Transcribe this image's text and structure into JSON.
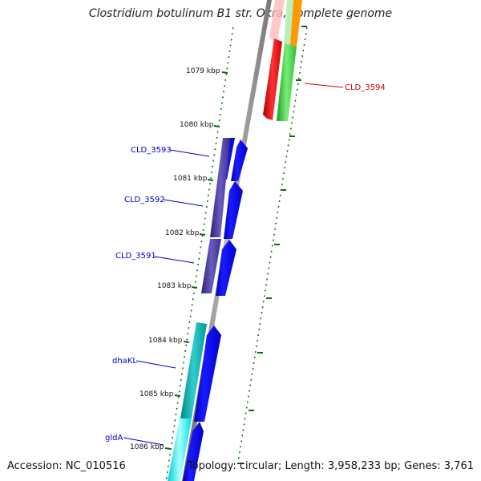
{
  "title": "Clostridium botulinum B1 str. Okra, complete genome",
  "footer": {
    "accession": "Accession: NC_010516",
    "summary": "Topology: circular; Length: 3,958,233 bp; Genes: 3,761"
  },
  "kbp_ticks": [
    "1079 kbp",
    "1080 kbp",
    "1081 kbp",
    "1082 kbp",
    "1083 kbp",
    "1084 kbp",
    "1085 kbp",
    "1086 kbp"
  ],
  "genes": {
    "cld3594": "CLD_3594",
    "cld3593": "CLD_3593",
    "cld3592": "CLD_3592",
    "cld3591": "CLD_3591",
    "dhaKL": "dhaKL",
    "gldA": "gldA"
  },
  "colors": {
    "backbone": "#888888",
    "tick": "#116611",
    "cds": "#0000ee",
    "red_gene": "#ee0000",
    "green_gene": "#33cc33",
    "orange_gene": "#ff9900",
    "purple_gene": "#443399",
    "teal_gene": "#00aaaa",
    "cyan_gene": "#00eeee"
  }
}
